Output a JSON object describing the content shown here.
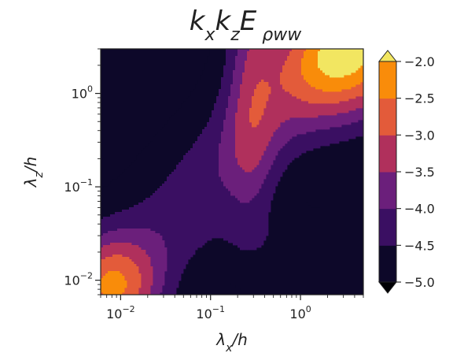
{
  "chart_data": {
    "type": "heatmap",
    "subtype": "filled-contour",
    "title": {
      "main": "k",
      "parts": [
        {
          "text": "k",
          "sub": "x"
        },
        {
          "text": "k",
          "sub": "z"
        },
        {
          "text": "E",
          "sub": " ρww"
        }
      ]
    },
    "xlabel": {
      "var": "λ",
      "sub": "x",
      "tail": "/h"
    },
    "ylabel": {
      "var": "λ",
      "sub": "z",
      "tail": "/h"
    },
    "xscale": "log",
    "yscale": "log",
    "xlim": [
      0.006,
      5
    ],
    "ylim": [
      0.007,
      3
    ],
    "x_ticks": [
      {
        "value": 0.01,
        "base": "10",
        "exp": "−2"
      },
      {
        "value": 0.1,
        "base": "10",
        "exp": "−1"
      },
      {
        "value": 1,
        "base": "10",
        "exp": "0"
      }
    ],
    "y_ticks": [
      {
        "value": 0.01,
        "base": "10",
        "exp": "−2"
      },
      {
        "value": 0.1,
        "base": "10",
        "exp": "−1"
      },
      {
        "value": 1,
        "base": "10",
        "exp": "0"
      }
    ],
    "colorbar": {
      "levels": [
        -5.0,
        -4.5,
        -4.0,
        -3.5,
        -3.0,
        -2.5,
        -2.0
      ],
      "tick_labels": [
        "−5.0",
        "−4.5",
        "−4.0",
        "−3.5",
        "−3.0",
        "−2.5",
        "−2.0"
      ],
      "colors": [
        "#0d0829",
        "#3a0f62",
        "#6b1f7b",
        "#b0305c",
        "#e35b3a",
        "#f98c0a",
        "#f2e661"
      ],
      "extend": "both",
      "extend_low_color": "#000004",
      "extend_high_color": "#fcffa4"
    },
    "bands": [
      {
        "level": -5.0,
        "color": "#0d0829"
      },
      {
        "level": -4.5,
        "color": "#3a0f62"
      },
      {
        "level": -4.0,
        "color": "#6b1f7b"
      },
      {
        "level": -3.5,
        "color": "#b0305c"
      },
      {
        "level": -3.0,
        "color": "#e35b3a"
      },
      {
        "level": -2.5,
        "color": "#f98c0a"
      },
      {
        "level": -2.0,
        "color": "#f2e661"
      }
    ],
    "peaks": [
      {
        "x": 0.008,
        "y": 0.0085,
        "sx": 0.55,
        "sy": 0.55,
        "amp": 2.3
      },
      {
        "x": 3.5,
        "y": 2.4,
        "sx": 0.8,
        "sy": 0.7,
        "amp": 2.4
      }
    ],
    "ridge_amp": 1.3,
    "background_level": -5.2,
    "grid": false
  }
}
